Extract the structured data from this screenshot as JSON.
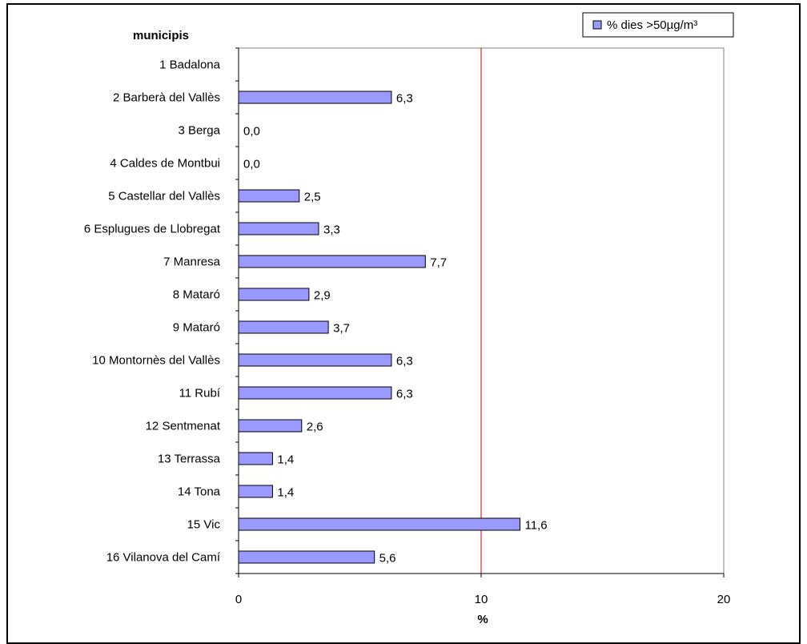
{
  "chart_data": {
    "type": "bar",
    "orientation": "horizontal",
    "ylabel": "municipis",
    "xlabel": "%",
    "xlim": [
      0,
      20
    ],
    "xticks": [
      0,
      10,
      20
    ],
    "reference_line": 10,
    "legend_position": "top-right",
    "categories": [
      "1 Badalona",
      "2 Barberà del Vallès",
      "3 Berga",
      "4 Caldes de Montbui",
      "5 Castellar del Vallès",
      "6 Esplugues de Llobregat",
      "7 Manresa",
      "8 Mataró",
      "9 Mataró",
      "10 Montornès del Vallès",
      "11 Rubí",
      "12 Sentmenat",
      "13 Terrassa",
      "14 Tona",
      "15 Vic",
      "16 Vilanova del Camí"
    ],
    "series": [
      {
        "name": "% dies >50µg/m³",
        "values": [
          null,
          6.3,
          0.0,
          0.0,
          2.5,
          3.3,
          7.7,
          2.9,
          3.7,
          6.3,
          6.3,
          2.6,
          1.4,
          1.4,
          11.6,
          5.6
        ],
        "labels": [
          "",
          "6,3",
          "0,0",
          "0,0",
          "2,5",
          "3,3",
          "7,7",
          "2,9",
          "3,7",
          "6,3",
          "6,3",
          "2,6",
          "1,4",
          "1,4",
          "11,6",
          "5,6"
        ]
      }
    ],
    "colors": {
      "bar_fill": "#9999ff",
      "bar_stroke": "#000000",
      "reference_line": "#cc0000",
      "axis": "#000000"
    }
  }
}
